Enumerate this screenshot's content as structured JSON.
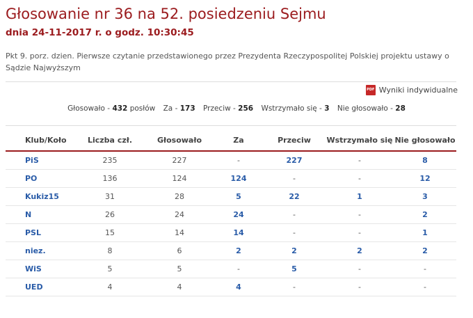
{
  "header": {
    "title": "Głosowanie nr 36 na 52. posiedzeniu Sejmu",
    "subtitle": "dnia 24-11-2017 r. o godz. 10:30:45",
    "description": "Pkt 9. porz. dzien. Pierwsze czytanie przedstawionego przez Prezydenta Rzeczypospolitej Polskiej projektu ustawy o Sądzie Najwyższym"
  },
  "pdf_link": {
    "label": "Wyniki indywidualne",
    "icon": "pdf-icon",
    "icon_text": "PDF"
  },
  "summary": {
    "voted_label": "Głosowało -",
    "voted_value": "432",
    "voted_suffix": "posłów",
    "for_label": "Za -",
    "for_value": "173",
    "against_label": "Przeciw -",
    "against_value": "256",
    "abstain_label": "Wstrzymało się -",
    "abstain_value": "3",
    "not_voted_label": "Nie głosowało -",
    "not_voted_value": "28"
  },
  "table": {
    "headers": [
      "Klub/Koło",
      "Liczba czł.",
      "Głosowało",
      "Za",
      "Przeciw",
      "Wstrzymało się",
      "Nie głosowało"
    ],
    "rows": [
      [
        "PiS",
        "235",
        "227",
        "-",
        "227",
        "-",
        "8"
      ],
      [
        "PO",
        "136",
        "124",
        "124",
        "-",
        "-",
        "12"
      ],
      [
        "Kukiz15",
        "31",
        "28",
        "5",
        "22",
        "1",
        "3"
      ],
      [
        "N",
        "26",
        "24",
        "24",
        "-",
        "-",
        "2"
      ],
      [
        "PSL",
        "15",
        "14",
        "14",
        "-",
        "-",
        "1"
      ],
      [
        "niez.",
        "8",
        "6",
        "2",
        "2",
        "2",
        "2"
      ],
      [
        "WiS",
        "5",
        "5",
        "-",
        "5",
        "-",
        "-"
      ],
      [
        "UED",
        "4",
        "4",
        "4",
        "-",
        "-",
        "-"
      ]
    ]
  },
  "colors": {
    "accent": "#9b1b1e",
    "link": "#2a5ca8",
    "pdf": "#c62828"
  }
}
